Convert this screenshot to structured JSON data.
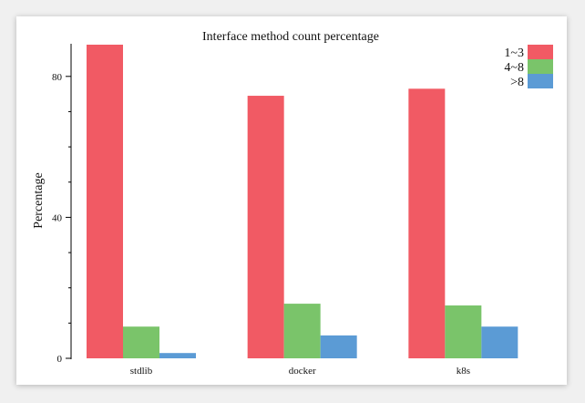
{
  "chart_data": {
    "type": "bar",
    "title": "Interface method count percentage",
    "ylabel": "Percentage",
    "xlabel": "",
    "categories": [
      "stdlib",
      "docker",
      "k8s"
    ],
    "series": [
      {
        "name": "1~3",
        "color": "#f15a64",
        "values": [
          89,
          74.5,
          76.5
        ]
      },
      {
        "name": "4~8",
        "color": "#7ac46a",
        "values": [
          9,
          15.5,
          15
        ]
      },
      {
        "name": ">8",
        "color": "#5b9bd5",
        "values": [
          1.5,
          6.5,
          9
        ]
      }
    ],
    "ylim": [
      0,
      89
    ],
    "yticks": [
      0,
      40,
      80
    ],
    "ytick_labels": [
      "0",
      "40",
      "80"
    ],
    "legend_position": "top-right",
    "grid": false
  }
}
